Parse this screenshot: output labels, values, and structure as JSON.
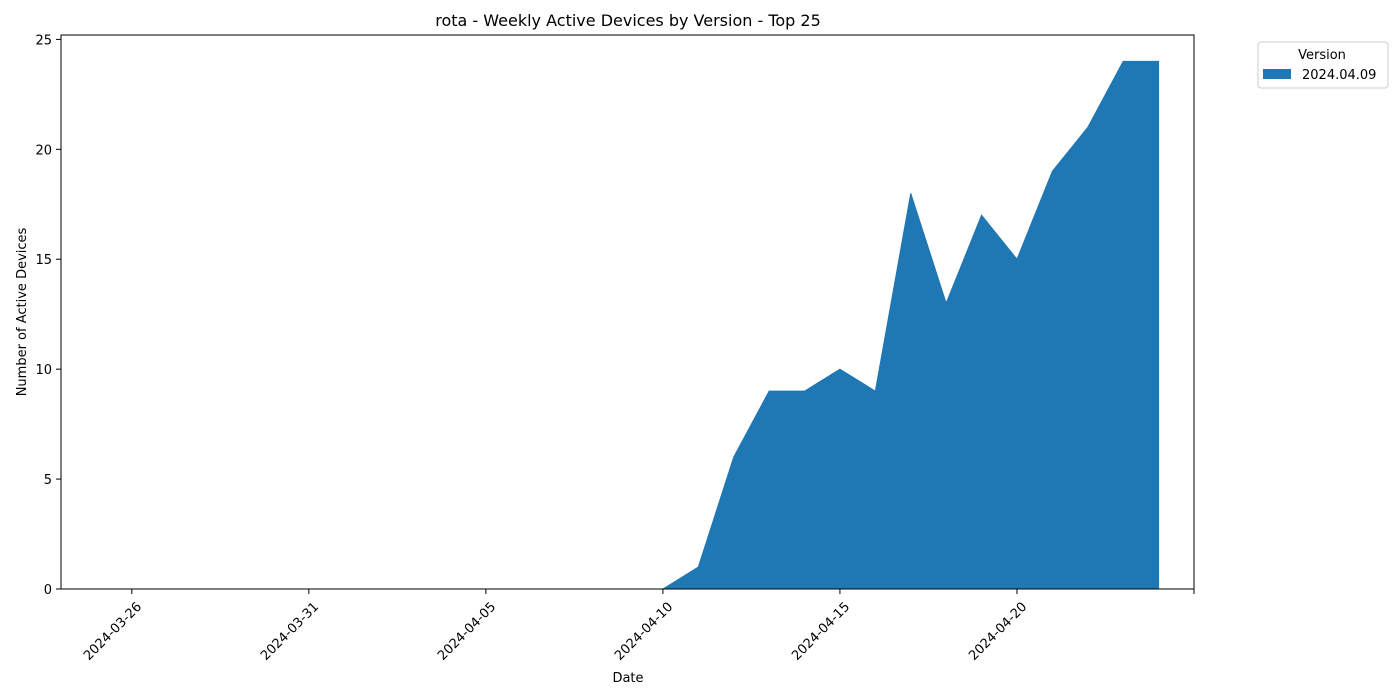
{
  "chart_data": {
    "type": "area",
    "title": "rota - Weekly Active Devices by Version - Top 25",
    "xlabel": "Date",
    "ylabel": "Number of Active Devices",
    "x_ticks": [
      "2024-03-26",
      "2024-03-31",
      "2024-04-05",
      "2024-04-10",
      "2024-04-15",
      "2024-04-20"
    ],
    "y_ticks": [
      "0",
      "5",
      "10",
      "15",
      "20",
      "25"
    ],
    "xlim": [
      "2024-03-24",
      "2024-04-25"
    ],
    "ylim": [
      0,
      25.2
    ],
    "grid": false,
    "legend": {
      "title": "Version",
      "placement": "outside-top-right"
    },
    "x": [
      "2024-03-26",
      "2024-03-27",
      "2024-03-28",
      "2024-03-29",
      "2024-03-30",
      "2024-03-31",
      "2024-04-01",
      "2024-04-02",
      "2024-04-03",
      "2024-04-04",
      "2024-04-05",
      "2024-04-06",
      "2024-04-07",
      "2024-04-08",
      "2024-04-09",
      "2024-04-10",
      "2024-04-11",
      "2024-04-12",
      "2024-04-13",
      "2024-04-14",
      "2024-04-15",
      "2024-04-16",
      "2024-04-17",
      "2024-04-18",
      "2024-04-19",
      "2024-04-20",
      "2024-04-21",
      "2024-04-22",
      "2024-04-23",
      "2024-04-24"
    ],
    "series": [
      {
        "name": "2024.04.09",
        "color": "#1f77b4",
        "values": [
          0,
          0,
          0,
          0,
          0,
          0,
          0,
          0,
          0,
          0,
          0,
          0,
          0,
          0,
          0,
          0,
          1,
          6,
          9,
          9,
          10,
          9,
          18,
          13,
          17,
          15,
          19,
          21,
          24,
          24
        ]
      }
    ]
  }
}
